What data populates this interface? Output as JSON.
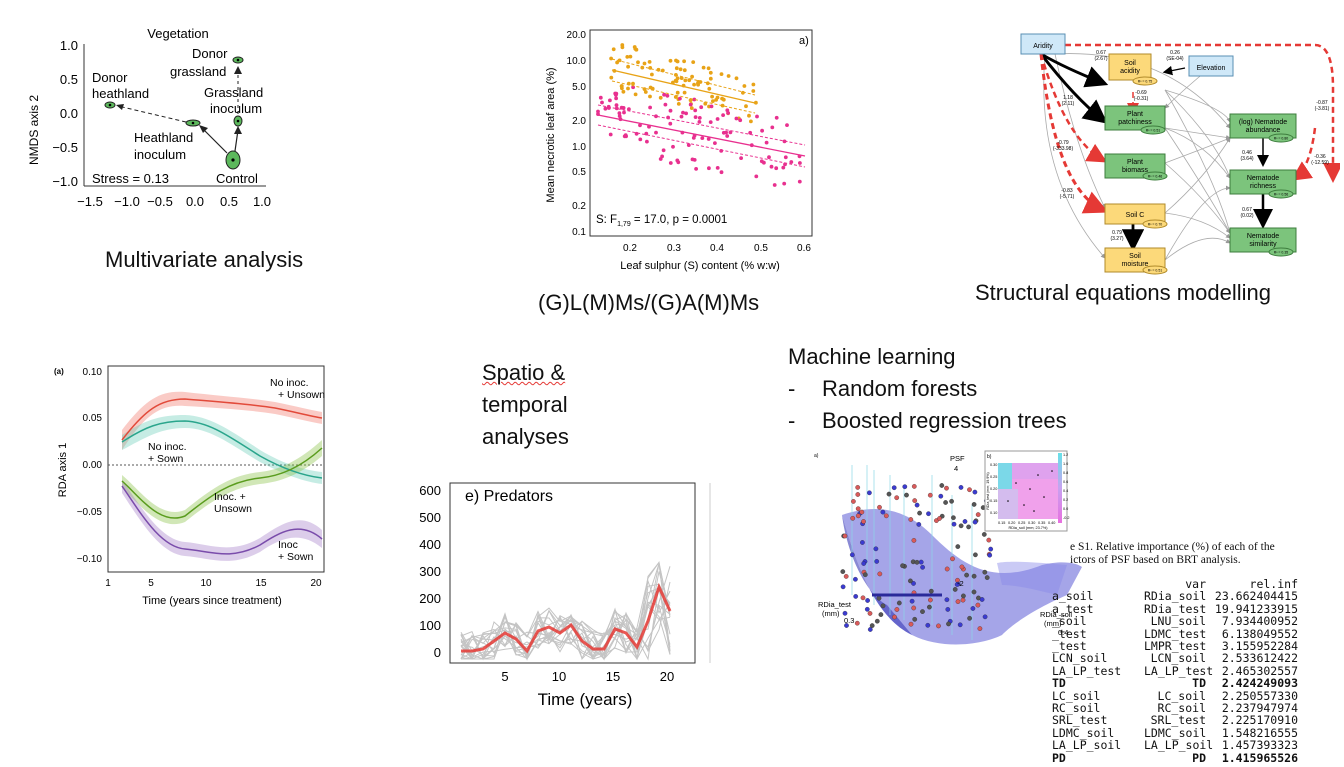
{
  "captions": {
    "multivariate": "Multivariate analysis",
    "glmm": "(G)L(M)Ms/(G)A(M)Ms",
    "sem": "Structural equations modelling",
    "spatio_line1": "Spatio &",
    "spatio_line2": "temporal",
    "spatio_line3": "analyses",
    "ml_title": "Machine learning",
    "ml_bullet1": "Random forests",
    "ml_bullet2": "Boosted regression trees",
    "bullet_dash": "-"
  },
  "nmds": {
    "title": "Vegetation",
    "ylabel": "NMDS axis 2",
    "stress": "Stress = 0.13",
    "xticks": [
      "−1.5",
      "−1.0",
      "−0.5",
      "0.0",
      "0.5",
      "1.0"
    ],
    "yticks": [
      "1.0",
      "0.5",
      "0.0",
      "−0.5",
      "−1.0"
    ],
    "labels": {
      "donor_heath": [
        "Donor",
        "heathland"
      ],
      "donor_grass": [
        "Donor",
        "grassland"
      ],
      "grass_inoc": [
        "Grassland",
        "inoculum"
      ],
      "heath_inoc": [
        "Heathland",
        "inoculum"
      ],
      "control": "Control"
    }
  },
  "scatter": {
    "panel_label": "a)",
    "ylabel": "Mean necrotic leaf area (%)",
    "xlabel": "Leaf sulphur (S) content (% w:w)",
    "stat_prefix": "S: F",
    "stat_sub": "1,79",
    "stat_suffix": " = 17.0, p = 0.0001",
    "yticks": [
      "20.0",
      "10.0",
      "5.0",
      "2.0",
      "1.0",
      "0.5",
      "0.2",
      "0.1"
    ],
    "xticks": [
      "0.2",
      "0.3",
      "0.4",
      "0.5",
      "0.6"
    ],
    "colors": {
      "orange": "#e8a317",
      "pink": "#e8308f"
    }
  },
  "sem": {
    "aridity": "Aridity",
    "elevation": "Elevation",
    "soil_acidity": [
      "Soil",
      "acidity"
    ],
    "plant_patchiness": [
      "Plant",
      "patchiness"
    ],
    "plant_biomass": [
      "Plant",
      "biomass"
    ],
    "soil_c": "Soil C",
    "soil_moisture": [
      "Soil",
      "moisture"
    ],
    "nem_abundance": [
      "(log) Nematode",
      "abundance"
    ],
    "nem_richness": [
      "Nematode",
      "richness"
    ],
    "nem_similarity": [
      "Nematode",
      "similarity"
    ],
    "coefs": [
      "0.67",
      "(2.67)",
      "0.26",
      "(SE-04)",
      "-0.69",
      "(-0.31)",
      "1.18",
      "(2.11)",
      "-0.79",
      "(-333.98)",
      "-0.83",
      "(-5.71)",
      "0.79",
      "(3.27)",
      "-0.87",
      "(-3.81)",
      "0.46",
      "(3.64)",
      "-0.36",
      "(-12.59)",
      "0.67",
      "(0.02)"
    ],
    "r2": [
      "R² = 0.75",
      "R² = 0.51",
      "R² = 0.46",
      "R² = 0.70",
      "R² = 0.51",
      "R² = 0.80",
      "R² = 0.56",
      "R² = 0.35"
    ]
  },
  "rda": {
    "panel_label": "(a)",
    "ylabel": "RDA axis 1",
    "xlabel": "Time (years since treatment)",
    "yticks": [
      "0.10",
      "0.05",
      "0.00",
      "−0.05",
      "−0.10"
    ],
    "xticks": [
      "1",
      "5",
      "10",
      "15",
      "20"
    ],
    "labels": {
      "no_unsown": [
        "No inoc.",
        "+ Unsown"
      ],
      "no_sown": [
        "No inoc.",
        "+ Sown"
      ],
      "inoc_unsown": [
        "Inoc. +",
        "Unsown"
      ],
      "inoc_sown": [
        "Inoc",
        "+ Sown"
      ]
    },
    "colors": {
      "red": "#f26b5b",
      "teal": "#5cc9b3",
      "green": "#8bc34a",
      "purple": "#9b6fc4"
    }
  },
  "predators": {
    "title": "e) Predators",
    "xlabel": "Time (years)",
    "yticks": [
      "600",
      "500",
      "400",
      "300",
      "200",
      "100",
      "0"
    ],
    "xticks": [
      "5",
      "10",
      "15",
      "20"
    ]
  },
  "ml3d": {
    "panel_label": "a)",
    "psf_label": "PSF",
    "psf_tick": "4",
    "z_tick": "-2",
    "rdia_test": [
      "RDia_test",
      "(mm)"
    ],
    "rdia_test_tick": "0.3",
    "rdia_soil": [
      "RDia_soil",
      "(mm)"
    ],
    "rdia_soil_tick": "0.4",
    "inset_xlabel": "RDia_soil (mm; 23.7%)",
    "inset_ylabel": "RDia_test (mm; 19.9%)",
    "inset_label": "b)",
    "inset_xticks": [
      "0.15",
      "0.20",
      "0.25",
      "0.30",
      "0.35",
      "0.40"
    ],
    "inset_yticks": [
      "0.30",
      "0.25",
      "0.20",
      "0.15",
      "0.10"
    ],
    "inset_scale": [
      "1.2",
      "1.0",
      "0.8",
      "0.6",
      "0.4",
      "0.2",
      "0.0",
      "-0.2"
    ]
  },
  "brt": {
    "caption_line1": "e S1. Relative importance (%) of each of the",
    "caption_line2": "ictors of PSF based on BRT analysis.",
    "header_var": "var",
    "header_inf": "rel.inf",
    "rows": [
      {
        "a": "a_soil",
        "b": "RDia_soil",
        "c": "23.662404415",
        "bold": false
      },
      {
        "a": "a_test",
        "b": "RDia_test",
        "c": "19.941233915",
        "bold": false
      },
      {
        "a": "_soil",
        "b": "LNU_soil",
        "c": "7.934400952",
        "bold": false
      },
      {
        "a": "_test",
        "b": "LDMC_test",
        "c": "6.138049552",
        "bold": false
      },
      {
        "a": "_test",
        "b": "LMPR_test",
        "c": "3.155952284",
        "bold": false
      },
      {
        "a": "LCN_soil",
        "b": "LCN_soil",
        "c": "2.533612422",
        "bold": false
      },
      {
        "a": "LA_LP_test",
        "b": "LA_LP_test",
        "c": "2.465302557",
        "bold": false
      },
      {
        "a": "TD",
        "b": "TD",
        "c": "2.424249093",
        "bold": true
      },
      {
        "a": "LC_soil",
        "b": "LC_soil",
        "c": "2.250557330",
        "bold": false
      },
      {
        "a": "RC_soil",
        "b": "RC_soil",
        "c": "2.237947974",
        "bold": false
      },
      {
        "a": "SRL_test",
        "b": "SRL_test",
        "c": "2.225170910",
        "bold": false
      },
      {
        "a": "LDMC_soil",
        "b": "LDMC_soil",
        "c": "1.548216555",
        "bold": false
      },
      {
        "a": "LA_LP_soil",
        "b": "LA_LP_soil",
        "c": "1.457393323",
        "bold": false
      },
      {
        "a": "PD",
        "b": "PD",
        "c": "1.415965526",
        "bold": true
      }
    ]
  }
}
